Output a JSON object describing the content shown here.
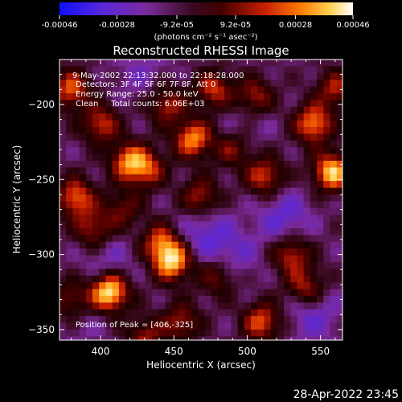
{
  "colorbar": {
    "tick_labels": [
      "-0.00046",
      "-0.00028",
      "-9.2e-05",
      "9.2e-05",
      "0.00028",
      "0.00046"
    ],
    "tick_values": [
      -0.00046,
      -0.00028,
      -9.2e-05,
      9.2e-05,
      0.00028,
      0.00046
    ],
    "range": [
      -0.00046,
      0.00046
    ],
    "unit_label": "(photons cm⁻² s⁻¹ asec⁻²)",
    "colors": [
      "#1010ff",
      "#6a28c8",
      "#7b2a7a",
      "#1a0000",
      "#a81800",
      "#ff6a00",
      "#ffe070",
      "#ffffff"
    ]
  },
  "annotations": {
    "time_range": "9-May-2002 22:13:32.000 to 22:18:28.000",
    "detectors": "Detectors: 3F 4F 5F 6F 7F 8F, Att 0",
    "energy": "Energy Range: 25.0 - 50.0 keV",
    "clean": "Clean     Total counts: 6.06E+03",
    "peak": "Position of Peak = [406,-325]"
  },
  "footer": {
    "timestamp": "28-Apr-2022 23:45"
  },
  "chart_data": {
    "type": "heatmap",
    "title": "Reconstructed RHESSI Image",
    "xlabel": "Heliocentric X (arcsec)",
    "ylabel": "Heliocentric Y (arcsec)",
    "xlim": [
      372,
      565
    ],
    "ylim": [
      -357,
      -170
    ],
    "x_ticks": [
      400,
      450,
      500,
      550
    ],
    "y_ticks": [
      -200,
      -250,
      -300,
      -350
    ],
    "x_tick_labels": [
      "400",
      "450",
      "500",
      "550"
    ],
    "y_tick_labels": [
      "−200",
      "−250",
      "−300",
      "−350"
    ],
    "color_scale": [
      -0.00046,
      0.00046
    ],
    "background_value": -0.00012,
    "sources": [
      {
        "x": 406,
        "y": -325,
        "value": 0.00046
      },
      {
        "x": 449,
        "y": -305,
        "value": 0.00036
      },
      {
        "x": 441,
        "y": -292,
        "value": 0.00022
      },
      {
        "x": 463,
        "y": -223,
        "value": 0.0003
      },
      {
        "x": 380,
        "y": -190,
        "value": 0.00024
      },
      {
        "x": 400,
        "y": -213,
        "value": 0.0002
      },
      {
        "x": 419,
        "y": -238,
        "value": 0.00026
      },
      {
        "x": 432,
        "y": -243,
        "value": 0.00018
      },
      {
        "x": 383,
        "y": -262,
        "value": 0.00026
      },
      {
        "x": 395,
        "y": -283,
        "value": 0.00016
      },
      {
        "x": 445,
        "y": -200,
        "value": 0.00018
      },
      {
        "x": 477,
        "y": -190,
        "value": 0.0002
      },
      {
        "x": 505,
        "y": -195,
        "value": 0.00018
      },
      {
        "x": 545,
        "y": -213,
        "value": 0.0003
      },
      {
        "x": 558,
        "y": -245,
        "value": 0.00038
      },
      {
        "x": 512,
        "y": -248,
        "value": 0.00022
      },
      {
        "x": 468,
        "y": -262,
        "value": 0.00018
      },
      {
        "x": 530,
        "y": -300,
        "value": 0.0002
      },
      {
        "x": 540,
        "y": -322,
        "value": 0.00018
      },
      {
        "x": 510,
        "y": -345,
        "value": 0.00024
      },
      {
        "x": 455,
        "y": -345,
        "value": 0.00016
      },
      {
        "x": 430,
        "y": -355,
        "value": 0.00014
      },
      {
        "x": 480,
        "y": -315,
        "value": 0.00012
      },
      {
        "x": 560,
        "y": -190,
        "value": 0.00016
      },
      {
        "x": 490,
        "y": -230,
        "value": 0.0001
      },
      {
        "x": 380,
        "y": -330,
        "value": 0.00012
      },
      {
        "x": 415,
        "y": -270,
        "value": 0.0001
      }
    ],
    "negative_regions": [
      {
        "x": 525,
        "y": -275,
        "value": -0.0003
      },
      {
        "x": 470,
        "y": -285,
        "value": -0.00028
      },
      {
        "x": 490,
        "y": -300,
        "value": -0.00026
      },
      {
        "x": 405,
        "y": -305,
        "value": -0.00024
      },
      {
        "x": 545,
        "y": -340,
        "value": -0.00028
      },
      {
        "x": 500,
        "y": -210,
        "value": -0.0002
      },
      {
        "x": 428,
        "y": -180,
        "value": -0.00022
      },
      {
        "x": 390,
        "y": -345,
        "value": -0.00018
      }
    ]
  }
}
